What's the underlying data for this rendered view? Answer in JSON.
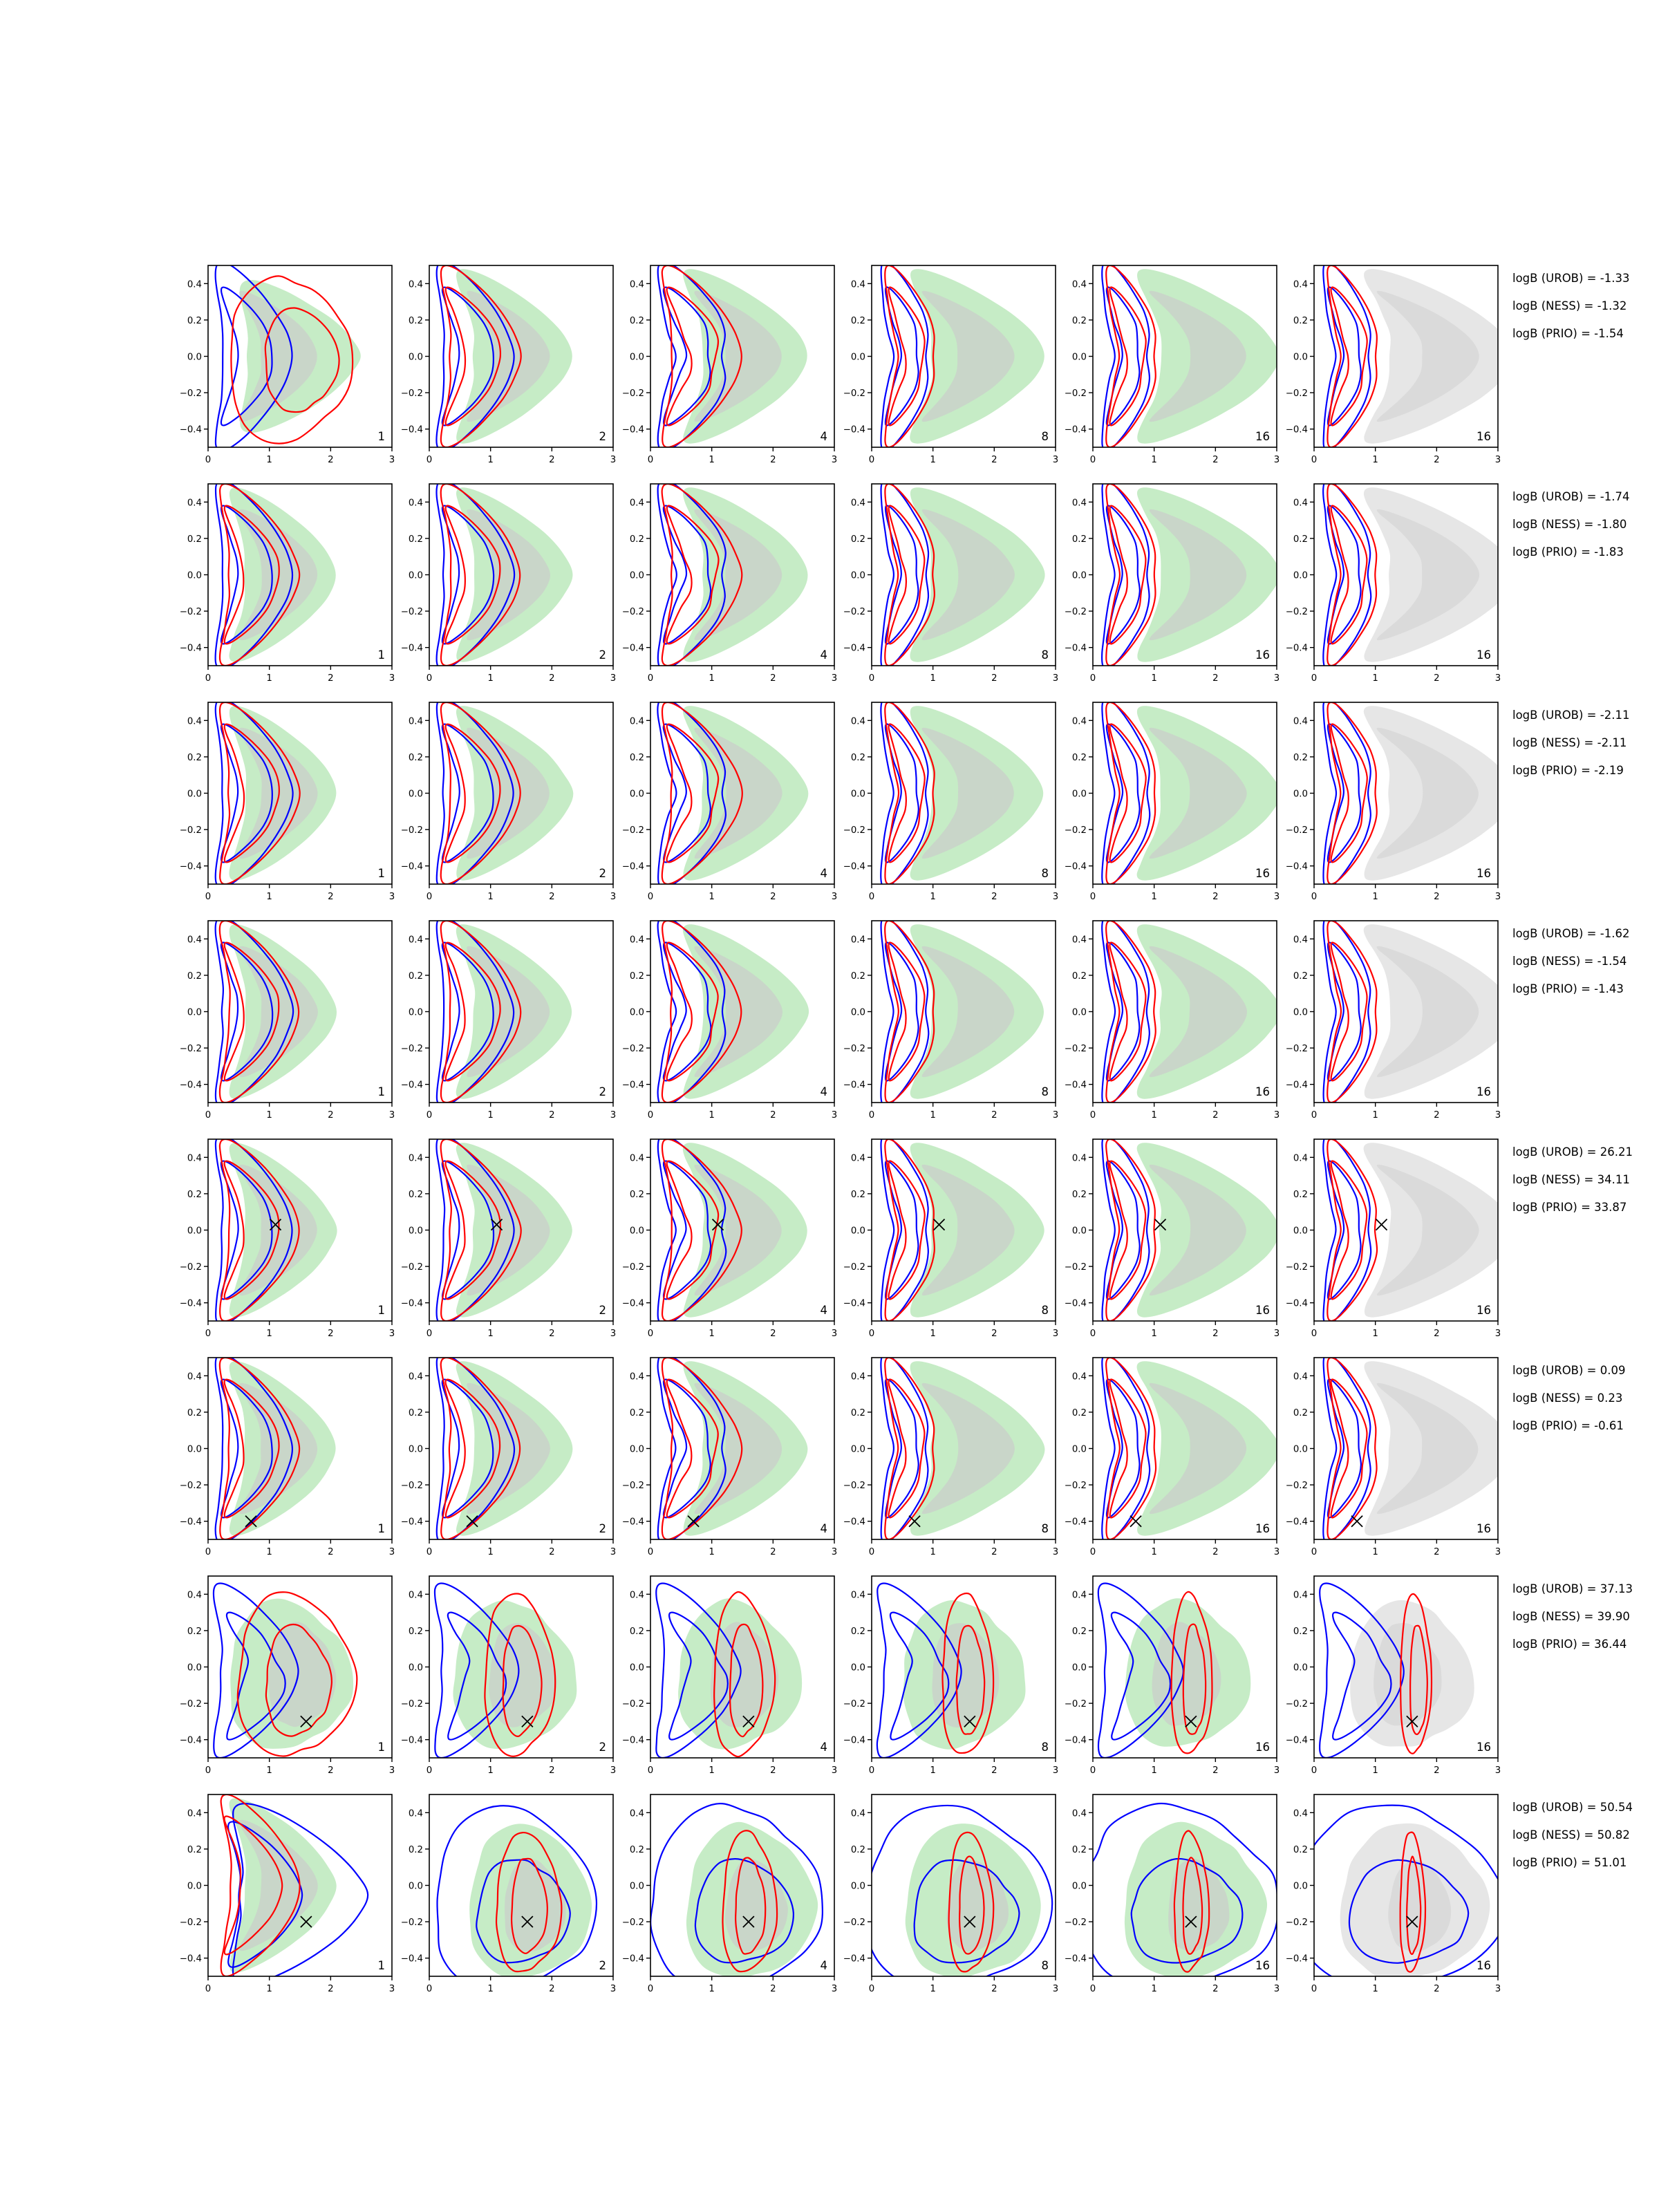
{
  "colors": {
    "outer_fill": "#c6ecc6",
    "inner_fill": "#c9cfc9",
    "gray_outer_fill": "#e6e6e6",
    "gray_inner_fill": "#d6d6d6",
    "blue": "#0000ff",
    "red": "#ff0000",
    "marker": "#000000"
  },
  "chart_data": {
    "type": "contour",
    "grid": false,
    "xlim": [
      0,
      3
    ],
    "ylim": [
      -0.5,
      0.5
    ],
    "x_ticks": [
      "0",
      "1",
      "2",
      "3"
    ],
    "y_ticks": [
      "0.4",
      "0.2",
      "0.0",
      "−0.2",
      "−0.4"
    ],
    "column_labels": [
      "1",
      "2",
      "4",
      "8",
      "16",
      "16"
    ],
    "rows": [
      {
        "x_marker": null,
        "logB": [
          "logB (UROB) = -1.33",
          "logB (NESS) = -1.32",
          "logB (PRIO) = -1.54"
        ]
      },
      {
        "x_marker": null,
        "logB": [
          "logB (UROB) = -1.74",
          "logB (NESS) = -1.80",
          "logB (PRIO) = -1.83"
        ]
      },
      {
        "x_marker": null,
        "logB": [
          "logB (UROB) = -2.11",
          "logB (NESS) = -2.11",
          "logB (PRIO) = -2.19"
        ]
      },
      {
        "x_marker": null,
        "logB": [
          "logB (UROB) = -1.62",
          "logB (NESS) = -1.54",
          "logB (PRIO) = -1.43"
        ]
      },
      {
        "x_marker": [
          1.1,
          0.03
        ],
        "logB": [
          "logB (UROB) = 26.21",
          "logB (NESS) = 34.11",
          "logB (PRIO) = 33.87"
        ]
      },
      {
        "x_marker": [
          0.7,
          -0.4
        ],
        "logB": [
          "logB (UROB) = 0.09",
          "logB (NESS) = 0.23",
          "logB (PRIO) = -0.61"
        ]
      },
      {
        "x_marker": [
          1.6,
          -0.3
        ],
        "logB": [
          "logB (UROB) = 37.13",
          "logB (NESS) = 39.90",
          "logB (PRIO) = 36.44"
        ]
      },
      {
        "x_marker": [
          1.6,
          -0.2
        ],
        "logB": [
          "logB (UROB) = 50.54",
          "logB (NESS) = 50.82",
          "logB (PRIO) = 51.01"
        ]
      }
    ]
  }
}
